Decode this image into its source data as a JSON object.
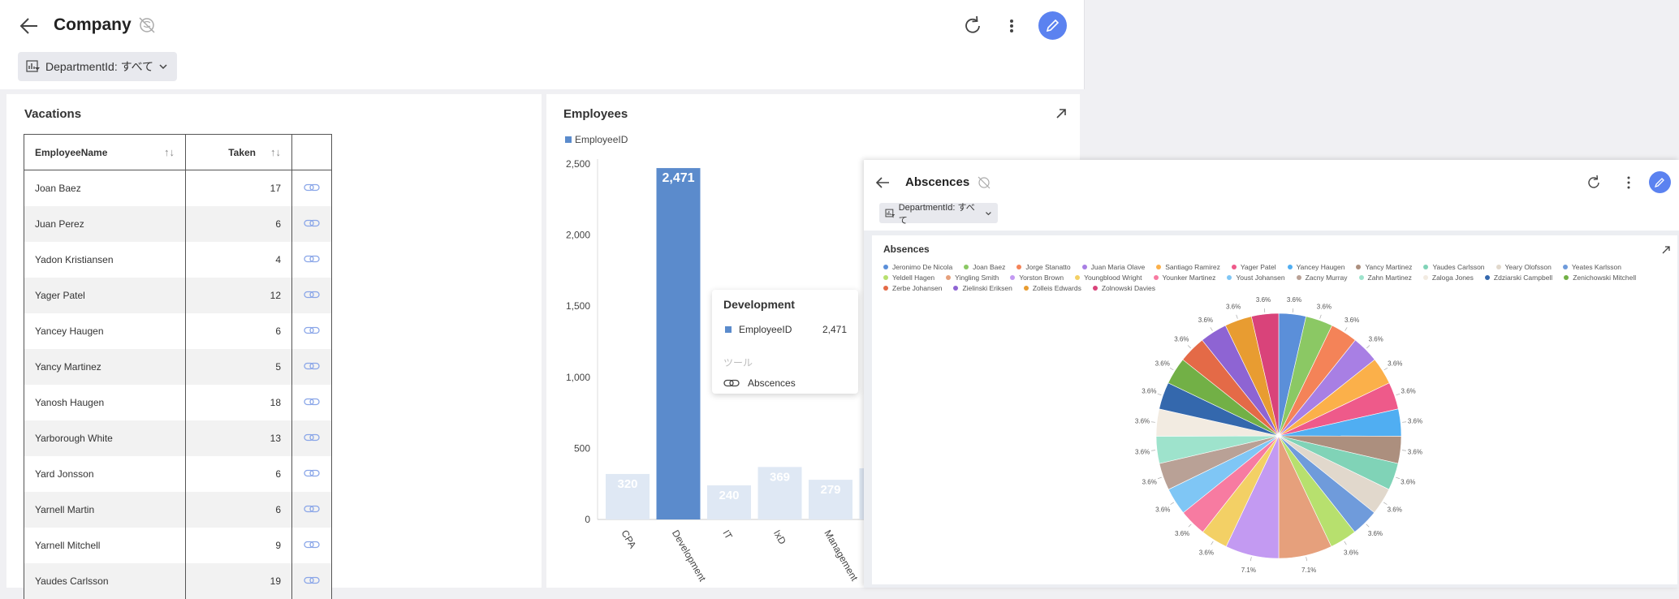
{
  "dashboard": {
    "title": "Company",
    "filter": {
      "label": "DepartmentId: すべて"
    }
  },
  "vacations": {
    "title": "Vacations",
    "columns": [
      "EmployeeName",
      "Taken"
    ],
    "rows": [
      {
        "name": "Joan Baez",
        "taken": "17"
      },
      {
        "name": "Juan Perez",
        "taken": "6"
      },
      {
        "name": "Yadon Kristiansen",
        "taken": "4"
      },
      {
        "name": "Yager Patel",
        "taken": "12"
      },
      {
        "name": "Yancey Haugen",
        "taken": "6"
      },
      {
        "name": "Yancy Martinez",
        "taken": "5"
      },
      {
        "name": "Yanosh Haugen",
        "taken": "18"
      },
      {
        "name": "Yarborough White",
        "taken": "13"
      },
      {
        "name": "Yard Jonsson",
        "taken": "6"
      },
      {
        "name": "Yarnell Martin",
        "taken": "6"
      },
      {
        "name": "Yarnell Mitchell",
        "taken": "9"
      },
      {
        "name": "Yaudes Carlsson",
        "taken": "19"
      }
    ]
  },
  "employees": {
    "title": "Employees",
    "tooltip": {
      "title": "Development",
      "series": "EmployeeID",
      "value": "2,471",
      "tools_label": "ツール",
      "link_label": "Abscences"
    }
  },
  "absences_window": {
    "title": "Abscences",
    "filter": {
      "label": "DepartmentId: すべて"
    },
    "panel_title": "Absences"
  },
  "chart_data": [
    {
      "type": "bar",
      "title": "Employees",
      "legend": [
        "EmployeeID"
      ],
      "categories": [
        "CPA",
        "Development",
        "IT",
        "IxD",
        "Management"
      ],
      "series": [
        {
          "name": "EmployeeID",
          "values": [
            320,
            2471,
            240,
            369,
            279
          ],
          "labels": [
            "320",
            "2,471",
            "240",
            "369",
            "279"
          ]
        }
      ],
      "ylim": [
        0,
        2500
      ],
      "yticks": [
        0,
        500,
        1000,
        1500,
        2000,
        2500
      ],
      "ytick_labels": [
        "0",
        "500",
        "1,000",
        "1,500",
        "2,000",
        "2,500"
      ],
      "highlight": "Development",
      "color": "#5b8bcc",
      "dim_color": "#dfe8f4"
    },
    {
      "type": "pie",
      "title": "Absences",
      "legend_position": "top",
      "slices": [
        {
          "label": "Jeronimo De Nicola",
          "value": 3.6,
          "text": "3.6%",
          "color": "#5b8fd9"
        },
        {
          "label": "Joan Baez",
          "value": 3.6,
          "text": "3.6%",
          "color": "#8bc864"
        },
        {
          "label": "Jorge Stanatto",
          "value": 3.6,
          "text": "3.6%",
          "color": "#f48358"
        },
        {
          "label": "Juan Maria Olave",
          "value": 3.6,
          "text": "3.6%",
          "color": "#a87fe4"
        },
        {
          "label": "Santiago Ramirez",
          "value": 3.6,
          "text": "3.6%",
          "color": "#fbb04a"
        },
        {
          "label": "Yager Patel",
          "value": 3.6,
          "text": "3.6%",
          "color": "#ee5a8a"
        },
        {
          "label": "Yancey Haugen",
          "value": 3.6,
          "text": "3.6%",
          "color": "#50aef2"
        },
        {
          "label": "Yancy Martinez",
          "value": 3.6,
          "text": "3.6%",
          "color": "#ac8f7e"
        },
        {
          "label": "Yaudes Carlsson",
          "value": 3.6,
          "text": "3.6%",
          "color": "#80d3b7"
        },
        {
          "label": "Yeary Olofsson",
          "value": 3.6,
          "text": "3.6%",
          "color": "#e1d8cc"
        },
        {
          "label": "Yeates Karlsson",
          "value": 3.6,
          "text": "3.6%",
          "color": "#6f9bdb"
        },
        {
          "label": "Yeldell Hagen",
          "value": 3.6,
          "text": "3.6%",
          "color": "#b7e06e"
        },
        {
          "label": "Yingling Smith",
          "value": 7.1,
          "text": "7.1%",
          "color": "#e6a07c"
        },
        {
          "label": "Yorston Brown",
          "value": 7.1,
          "text": "7.1%",
          "color": "#c39af2"
        },
        {
          "label": "Youngblood Wright",
          "value": 3.6,
          "text": "3.6%",
          "color": "#f3d065"
        },
        {
          "label": "Younker Martinez",
          "value": 3.6,
          "text": "3.6%",
          "color": "#f77ba1"
        },
        {
          "label": "Youst Johansen",
          "value": 3.6,
          "text": "3.6%",
          "color": "#7fc6f5"
        },
        {
          "label": "Zacny Murray",
          "value": 3.6,
          "text": "3.6%",
          "color": "#b9a196"
        },
        {
          "label": "Zahn Martinez",
          "value": 3.6,
          "text": "3.6%",
          "color": "#9ee3cc"
        },
        {
          "label": "Zaloga Jones",
          "value": 3.6,
          "text": "3.6%",
          "color": "#f2ebe1"
        },
        {
          "label": "Zdziarski Campbell",
          "value": 3.6,
          "text": "3.6%",
          "color": "#3468ad"
        },
        {
          "label": "Zenichowski Mitchell",
          "value": 3.6,
          "text": "3.6%",
          "color": "#72b046"
        },
        {
          "label": "Zerbe Johansen",
          "value": 3.6,
          "text": "3.6%",
          "color": "#e46a47"
        },
        {
          "label": "Zielinski Eriksen",
          "value": 3.6,
          "text": "3.6%",
          "color": "#8e64d3"
        },
        {
          "label": "Zolleis Edwards",
          "value": 3.6,
          "text": "3.6%",
          "color": "#e89c31"
        },
        {
          "label": "Zolnowski Davies",
          "value": 3.6,
          "text": "3.6%",
          "color": "#d9437a"
        }
      ]
    }
  ]
}
